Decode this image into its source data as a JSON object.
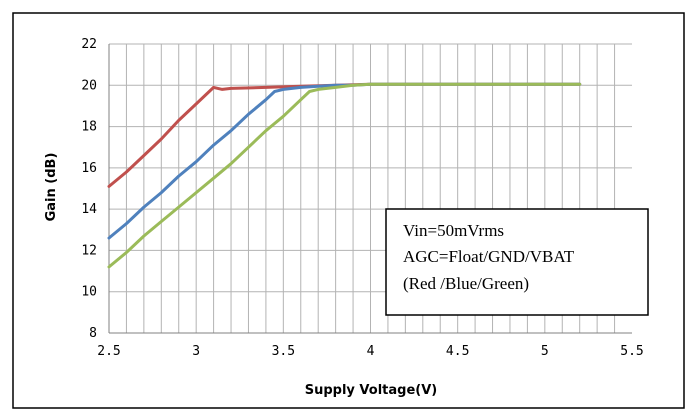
{
  "chart_data": {
    "type": "line",
    "title": "",
    "xlabel": "Supply Voltage(V)",
    "ylabel": "Gain (dB)",
    "xlim": [
      2.5,
      5.5
    ],
    "ylim": [
      8,
      22
    ],
    "x_ticks": [
      2.5,
      3,
      3.5,
      4,
      4.5,
      5,
      5.5
    ],
    "x_tick_labels": [
      "2.5",
      "3",
      "3.5",
      "4",
      "4.5",
      "5",
      "5.5"
    ],
    "y_ticks": [
      8,
      10,
      12,
      14,
      16,
      18,
      20,
      22
    ],
    "y_tick_labels": [
      "8",
      "10",
      "12",
      "14",
      "16",
      "18",
      "20",
      "22"
    ],
    "grid": true,
    "annotation": [
      "Vin=50mVrms",
      "AGC=Float/GND/VBAT",
      "(Red /Blue/Green)"
    ],
    "series": [
      {
        "color": "#c0504d",
        "x": [
          2.5,
          2.6,
          2.7,
          2.8,
          2.9,
          3.0,
          3.1,
          3.15,
          3.2,
          3.4,
          3.6,
          3.8,
          4.0,
          4.5,
          5.0,
          5.2
        ],
        "y": [
          15.1,
          15.8,
          16.6,
          17.4,
          18.3,
          19.1,
          19.9,
          19.8,
          19.85,
          19.9,
          19.95,
          20.0,
          20.05,
          20.05,
          20.05,
          20.05
        ]
      },
      {
        "color": "#4f81bd",
        "x": [
          2.5,
          2.6,
          2.7,
          2.8,
          2.9,
          3.0,
          3.1,
          3.2,
          3.3,
          3.4,
          3.45,
          3.5,
          3.6,
          3.7,
          3.8,
          3.9,
          4.0,
          4.5,
          5.0,
          5.2
        ],
        "y": [
          12.6,
          13.3,
          14.1,
          14.8,
          15.6,
          16.3,
          17.1,
          17.8,
          18.6,
          19.3,
          19.7,
          19.8,
          19.9,
          19.95,
          20.0,
          20.0,
          20.05,
          20.05,
          20.05,
          20.05
        ]
      },
      {
        "color": "#9bbb59",
        "x": [
          2.5,
          2.6,
          2.7,
          2.8,
          2.9,
          3.0,
          3.1,
          3.2,
          3.3,
          3.4,
          3.5,
          3.6,
          3.65,
          3.7,
          3.8,
          3.9,
          4.0,
          4.5,
          5.0,
          5.2
        ],
        "y": [
          11.2,
          11.9,
          12.7,
          13.4,
          14.1,
          14.8,
          15.5,
          16.2,
          17.0,
          17.8,
          18.5,
          19.3,
          19.7,
          19.8,
          19.9,
          20.0,
          20.05,
          20.05,
          20.05,
          20.05
        ]
      }
    ]
  }
}
